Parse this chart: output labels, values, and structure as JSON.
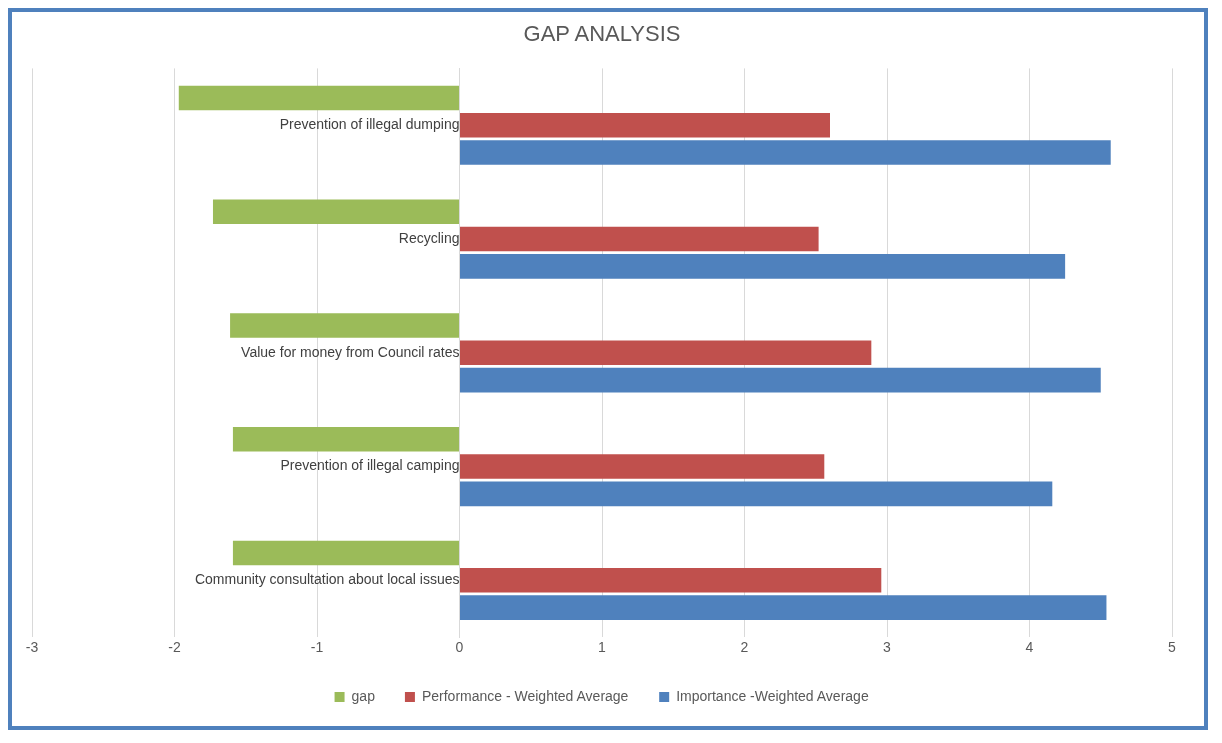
{
  "chart_data": {
    "type": "bar",
    "orientation": "horizontal",
    "title": "GAP ANALYSIS",
    "categories": [
      "Prevention of illegal dumping",
      "Recycling",
      "Value for money from Council rates",
      "Prevention of illegal camping",
      "Community consultation about local issues"
    ],
    "series": [
      {
        "name": "gap",
        "color": "#9bbb59",
        "values": [
          -1.97,
          -1.73,
          -1.61,
          -1.59,
          -1.59
        ]
      },
      {
        "name": "Performance - Weighted Average",
        "color": "#c0504d",
        "values": [
          2.6,
          2.52,
          2.89,
          2.56,
          2.96
        ]
      },
      {
        "name": "Importance -Weighted Average",
        "color": "#4f81bd",
        "values": [
          4.57,
          4.25,
          4.5,
          4.16,
          4.54
        ]
      }
    ],
    "xlim": [
      -3,
      5
    ],
    "xticks": [
      -3,
      -2,
      -1,
      0,
      1,
      2,
      3,
      4,
      5
    ],
    "grid": "x",
    "legend": "bottom"
  }
}
